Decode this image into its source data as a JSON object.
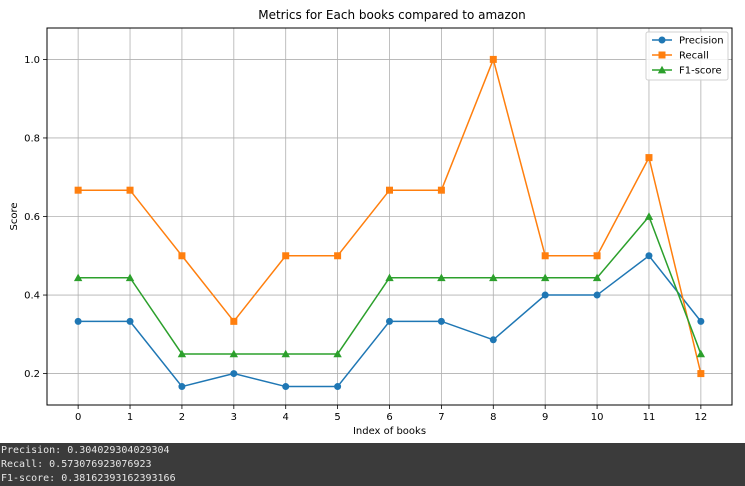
{
  "chart_data": {
    "type": "line",
    "title": "Metrics for Each books compared to amazon",
    "xlabel": "Index of books",
    "ylabel": "Score",
    "x": [
      0,
      1,
      2,
      3,
      4,
      5,
      6,
      7,
      8,
      9,
      10,
      11,
      12
    ],
    "xlim": [
      -0.6,
      12.6
    ],
    "ylim": [
      0.12,
      1.08
    ],
    "yticks": [
      0.2,
      0.4,
      0.6,
      0.8,
      1.0
    ],
    "ytick_labels": [
      "0.2",
      "0.4",
      "0.6",
      "0.8",
      "1.0"
    ],
    "xtick_labels": [
      "0",
      "1",
      "2",
      "3",
      "4",
      "5",
      "6",
      "7",
      "8",
      "9",
      "10",
      "11",
      "12"
    ],
    "grid": true,
    "legend_position": "top-right",
    "series": [
      {
        "name": "Precision",
        "color": "#1f77b4",
        "marker": "circle",
        "values": [
          0.333,
          0.333,
          0.167,
          0.2,
          0.167,
          0.167,
          0.333,
          0.333,
          0.286,
          0.4,
          0.4,
          0.5,
          0.333
        ]
      },
      {
        "name": "Recall",
        "color": "#ff7f0e",
        "marker": "square",
        "values": [
          0.667,
          0.667,
          0.5,
          0.333,
          0.5,
          0.5,
          0.667,
          0.667,
          1.0,
          0.5,
          0.5,
          0.75,
          0.2
        ]
      },
      {
        "name": "F1-score",
        "color": "#2ca02c",
        "marker": "triangle",
        "values": [
          0.444,
          0.444,
          0.25,
          0.25,
          0.25,
          0.25,
          0.444,
          0.444,
          0.444,
          0.444,
          0.444,
          0.6,
          0.25
        ]
      }
    ]
  },
  "console": {
    "lines": [
      "Precision: 0.304029304029304",
      "Recall: 0.573076923076923",
      "F1-score: 0.38162393162393166"
    ]
  }
}
